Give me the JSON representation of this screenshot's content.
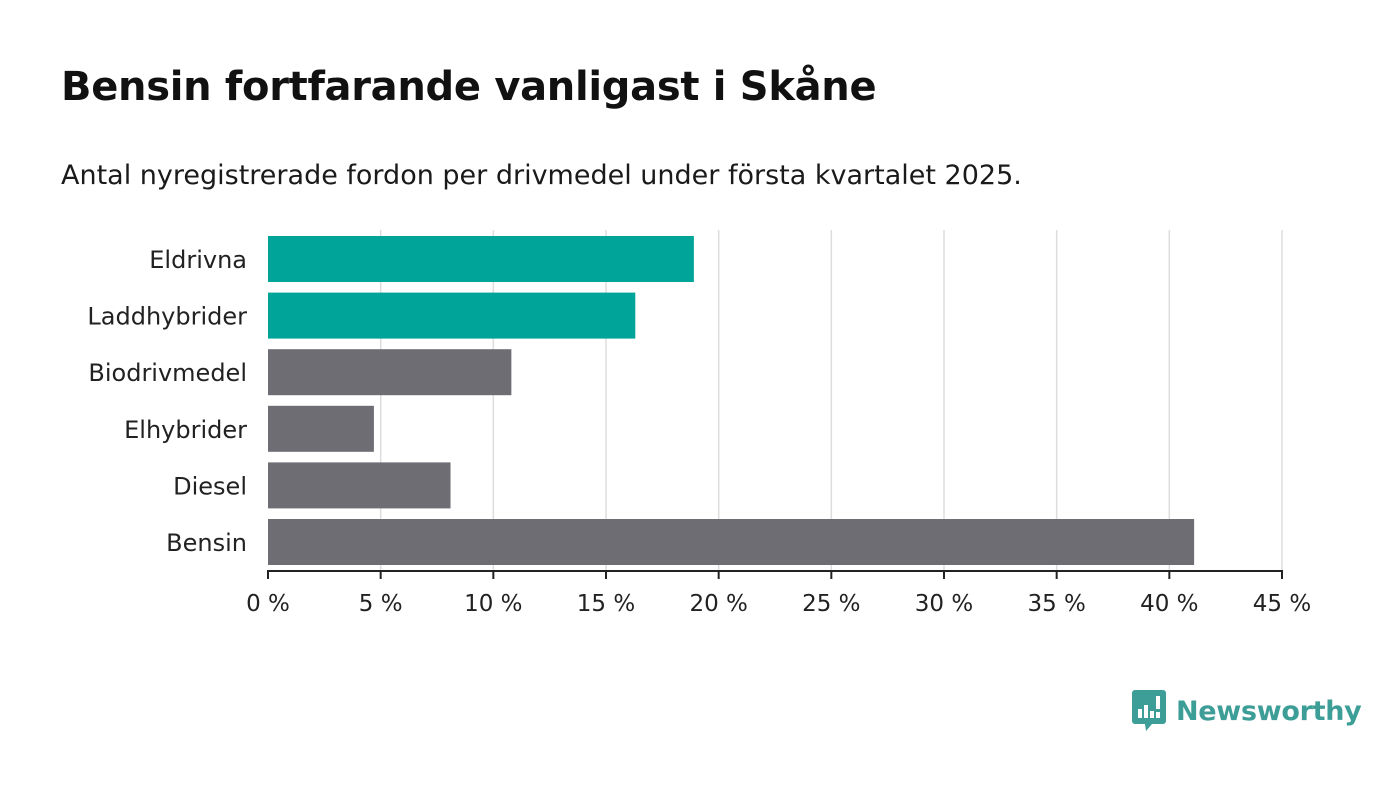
{
  "chart_data": {
    "type": "bar",
    "orientation": "horizontal",
    "title": "Bensin fortfarande vanligast i Skåne",
    "subtitle": "Antal nyregistrerade fordon per drivmedel under första kvartalet 2025.",
    "categories": [
      "Eldrivna",
      "Laddhybrider",
      "Biodrivmedel",
      "Elhybrider",
      "Diesel",
      "Bensin"
    ],
    "values": [
      18.9,
      16.3,
      10.8,
      4.7,
      8.1,
      41.1
    ],
    "unit": "%",
    "xlim": [
      0,
      45
    ],
    "x_ticks": [
      0,
      5,
      10,
      15,
      20,
      25,
      30,
      35,
      40,
      45
    ],
    "x_tick_labels": [
      "0 %",
      "5 %",
      "10 %",
      "15 %",
      "20 %",
      "25 %",
      "30 %",
      "35 %",
      "40 %",
      "45 %"
    ],
    "xlabel": "",
    "ylabel": "",
    "grid": "vertical",
    "highlighted_categories": [
      "Eldrivna",
      "Laddhybrider"
    ],
    "colors": {
      "highlight": "#00a499",
      "default": "#6e6d74",
      "grid": "#dddddd",
      "axis": "#222222"
    }
  },
  "brand": {
    "name": "Newsworthy",
    "logo_icon": "bar-chart-speech-bubble-icon",
    "color": "#3d9e98"
  }
}
